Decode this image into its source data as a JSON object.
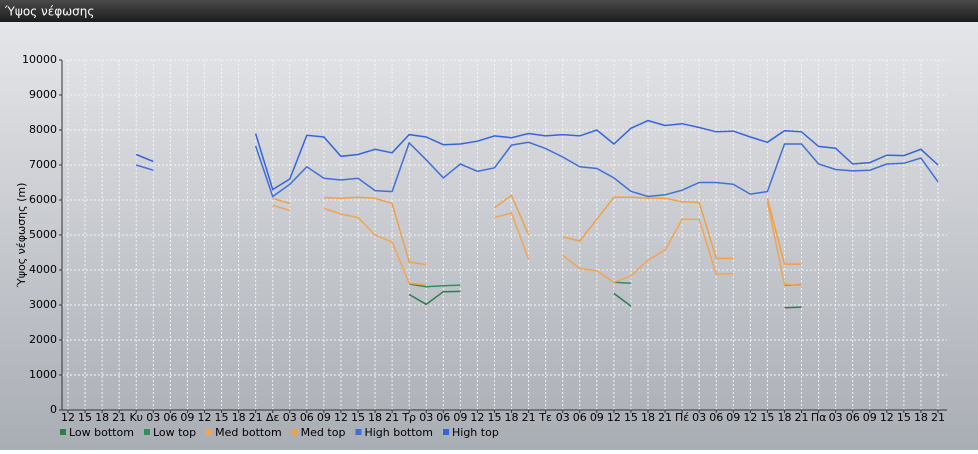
{
  "chart_data": {
    "type": "line",
    "title": "Ύψος νέφωσης",
    "y_label": "Ύψος νέφωσης (m)",
    "categories": [
      "12",
      "15",
      "18",
      "21",
      "Κυ",
      "03",
      "06",
      "09",
      "12",
      "15",
      "18",
      "21",
      "Δε",
      "03",
      "06",
      "09",
      "12",
      "15",
      "18",
      "21",
      "Τρ",
      "03",
      "06",
      "09",
      "12",
      "15",
      "18",
      "21",
      "Τε",
      "03",
      "06",
      "09",
      "12",
      "15",
      "18",
      "21",
      "Πέ",
      "03",
      "06",
      "09",
      "12",
      "15",
      "18",
      "21",
      "Πα",
      "03",
      "06",
      "09",
      "12",
      "15",
      "18",
      "21"
    ],
    "ylim": [
      0,
      10000
    ],
    "yticks": [
      0,
      1000,
      2000,
      3000,
      4000,
      5000,
      6000,
      7000,
      8000,
      9000,
      10000
    ],
    "grid": true,
    "series": [
      {
        "name": "Low bottom",
        "color": "#2e7d4f",
        "values": [
          null,
          null,
          null,
          null,
          null,
          null,
          null,
          null,
          null,
          null,
          null,
          null,
          null,
          null,
          null,
          null,
          null,
          null,
          null,
          null,
          3300,
          3020,
          3380,
          3390,
          null,
          null,
          null,
          null,
          null,
          null,
          null,
          null,
          3330,
          2970,
          null,
          null,
          null,
          null,
          null,
          null,
          null,
          null,
          2920,
          2940,
          null,
          null,
          null,
          null,
          null,
          null,
          null,
          null
        ]
      },
      {
        "name": "Low top",
        "color": "#2f8f5f",
        "values": [
          null,
          null,
          null,
          null,
          null,
          null,
          null,
          null,
          null,
          null,
          null,
          null,
          null,
          null,
          null,
          null,
          null,
          null,
          null,
          null,
          3600,
          3520,
          3550,
          3570,
          null,
          null,
          null,
          null,
          null,
          null,
          null,
          null,
          3650,
          3620,
          null,
          null,
          null,
          null,
          null,
          null,
          null,
          null,
          3570,
          3580,
          null,
          null,
          null,
          null,
          null,
          null,
          null,
          null
        ]
      },
      {
        "name": "Med bottom",
        "color": "#f4a451",
        "values": [
          null,
          null,
          null,
          null,
          null,
          null,
          null,
          null,
          null,
          null,
          null,
          null,
          5850,
          5700,
          null,
          5760,
          5600,
          5500,
          5000,
          4800,
          3620,
          3580,
          null,
          null,
          null,
          5500,
          5630,
          4300,
          null,
          4420,
          4040,
          3980,
          3650,
          3830,
          4280,
          4570,
          5450,
          5450,
          3880,
          3900,
          null,
          5950,
          3590,
          3570,
          null,
          null,
          null,
          null,
          null,
          null,
          null,
          null
        ]
      },
      {
        "name": "Med top",
        "color": "#f0a048",
        "values": [
          null,
          null,
          null,
          null,
          null,
          null,
          null,
          null,
          null,
          null,
          null,
          null,
          6050,
          5900,
          null,
          6070,
          6050,
          6080,
          6050,
          5900,
          4230,
          4150,
          null,
          null,
          null,
          5780,
          6130,
          5000,
          null,
          4950,
          4830,
          5450,
          6080,
          6080,
          6050,
          6050,
          5950,
          5930,
          4330,
          4330,
          null,
          6050,
          4170,
          4170,
          null,
          null,
          null,
          null,
          null,
          null,
          null,
          null
        ]
      },
      {
        "name": "High bottom",
        "color": "#3f6fd8",
        "values": [
          null,
          null,
          null,
          null,
          7000,
          6850,
          null,
          null,
          null,
          null,
          null,
          7550,
          6100,
          6450,
          6950,
          6620,
          6570,
          6620,
          6270,
          6240,
          7630,
          7150,
          6630,
          7030,
          6820,
          6920,
          7570,
          7650,
          7470,
          7230,
          6950,
          6900,
          6630,
          6250,
          6100,
          6150,
          6280,
          6500,
          6500,
          6450,
          6170,
          6240,
          7600,
          7600,
          7030,
          6870,
          6830,
          6850,
          7030,
          7050,
          7200,
          6520
        ]
      },
      {
        "name": "High top",
        "color": "#3565dc",
        "values": [
          null,
          null,
          null,
          null,
          7300,
          7100,
          null,
          null,
          null,
          null,
          null,
          7900,
          6300,
          6600,
          7850,
          7800,
          7250,
          7300,
          7450,
          7350,
          7870,
          7800,
          7580,
          7600,
          7680,
          7830,
          7780,
          7900,
          7830,
          7870,
          7830,
          8000,
          7600,
          8050,
          8270,
          8130,
          8180,
          8070,
          7950,
          7970,
          7800,
          7650,
          7980,
          7950,
          7530,
          7480,
          7030,
          7070,
          7280,
          7270,
          7450,
          7000
        ]
      }
    ]
  }
}
